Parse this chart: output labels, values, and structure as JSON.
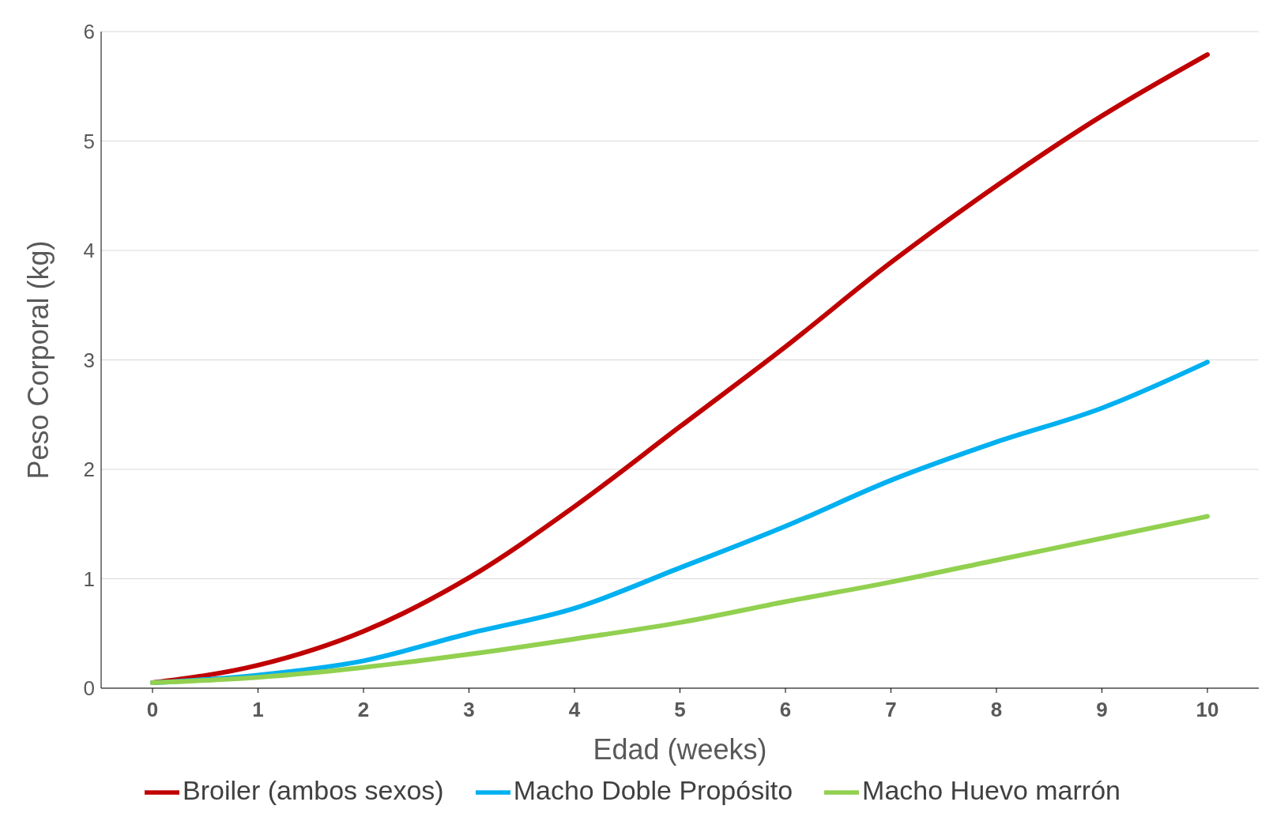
{
  "chart_data": {
    "type": "line",
    "xlabel": "Edad (weeks)",
    "ylabel": "Peso Corporal (kg)",
    "categories": [
      "0",
      "1",
      "2",
      "3",
      "4",
      "5",
      "6",
      "7",
      "8",
      "9",
      "10"
    ],
    "series": [
      {
        "name": "Broiler (ambos sexos)",
        "color": "#c00000",
        "values": [
          0.05,
          0.21,
          0.52,
          1.01,
          1.66,
          2.39,
          3.12,
          3.89,
          4.59,
          5.23,
          5.79
        ]
      },
      {
        "name": "Macho Doble Propósito",
        "color": "#00b0f0",
        "values": [
          0.05,
          0.12,
          0.25,
          0.5,
          0.73,
          1.1,
          1.48,
          1.9,
          2.25,
          2.56,
          2.98
        ]
      },
      {
        "name": "Macho Huevo marrón",
        "color": "#92d050",
        "values": [
          0.05,
          0.1,
          0.19,
          0.31,
          0.45,
          0.6,
          0.79,
          0.97,
          1.17,
          1.37,
          1.57
        ]
      }
    ],
    "ylim": [
      0,
      6
    ],
    "yticks": [
      0,
      1,
      2,
      3,
      4,
      5,
      6
    ],
    "grid": "y",
    "legend": "bottom",
    "marker": "none",
    "line_style": "solid"
  }
}
